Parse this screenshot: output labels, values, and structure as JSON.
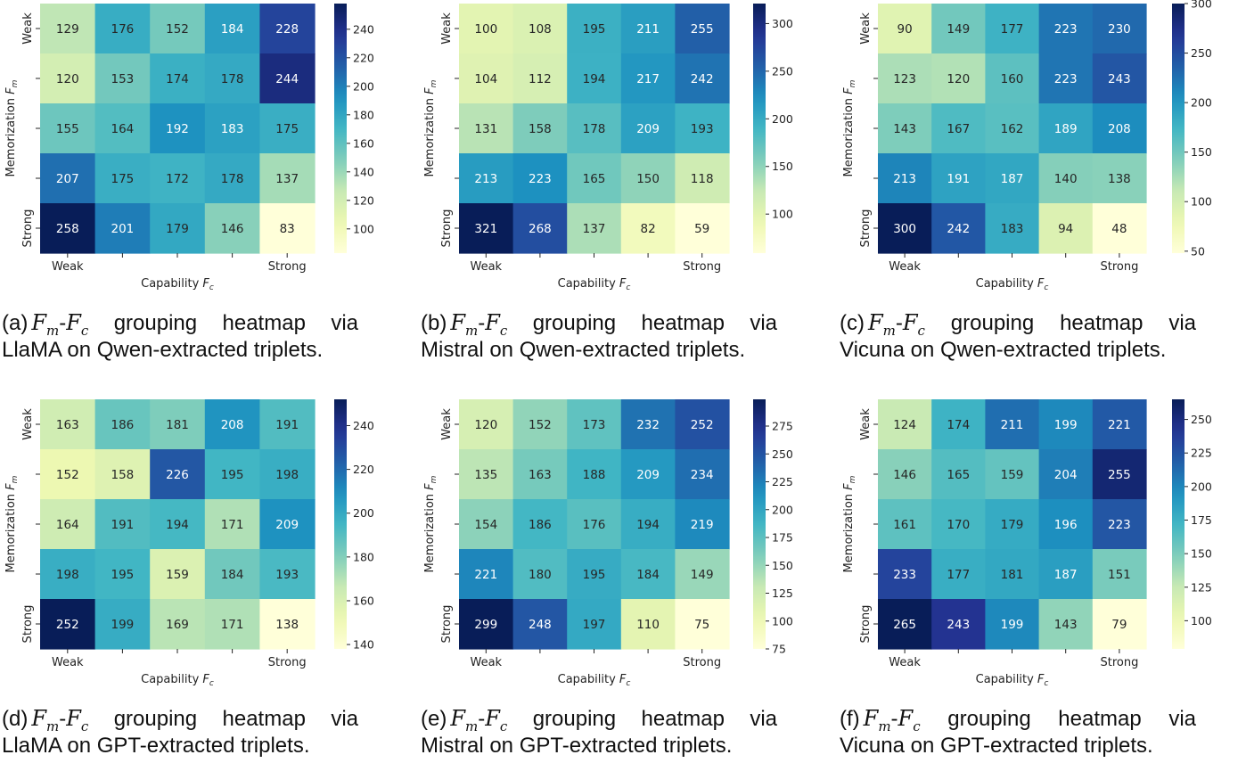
{
  "chart_data": [
    {
      "id": "a",
      "type": "heatmap",
      "caption_label": "(a)",
      "caption_text": "grouping heatmap via LlaMA on Qwen-extracted triplets.",
      "xlabel": "Capability F_c",
      "ylabel": "Memorization F_m",
      "xticks": [
        "Weak",
        "",
        "",
        "",
        "Strong"
      ],
      "yticks": [
        "Weak",
        "",
        "",
        "",
        "Strong"
      ],
      "values": [
        [
          129,
          176,
          152,
          184,
          228
        ],
        [
          120,
          153,
          174,
          178,
          244
        ],
        [
          155,
          164,
          192,
          183,
          175
        ],
        [
          207,
          175,
          172,
          178,
          137
        ],
        [
          258,
          201,
          179,
          146,
          83
        ]
      ],
      "vmin": 83,
      "vmax": 258,
      "colorbar_ticks": [
        100,
        120,
        140,
        160,
        180,
        200,
        220,
        240
      ],
      "colormap": "YlGnBu"
    },
    {
      "id": "b",
      "type": "heatmap",
      "caption_label": "(b)",
      "caption_text": "grouping heatmap via Mistral on Qwen-extracted triplets.",
      "xlabel": "Capability F_c",
      "ylabel": "Memorization F_m",
      "xticks": [
        "Weak",
        "",
        "",
        "",
        "Strong"
      ],
      "yticks": [
        "Weak",
        "",
        "",
        "",
        "Strong"
      ],
      "values": [
        [
          100,
          108,
          195,
          211,
          255
        ],
        [
          104,
          112,
          194,
          217,
          242
        ],
        [
          131,
          158,
          178,
          209,
          193
        ],
        [
          213,
          223,
          165,
          150,
          118
        ],
        [
          321,
          268,
          137,
          82,
          59
        ]
      ],
      "vmin": 59,
      "vmax": 321,
      "colorbar_ticks": [
        100,
        150,
        200,
        250,
        300
      ],
      "colormap": "YlGnBu"
    },
    {
      "id": "c",
      "type": "heatmap",
      "caption_label": "(c)",
      "caption_text": "grouping heatmap via Vicuna on Qwen-extracted triplets.",
      "xlabel": "Capability F_c",
      "ylabel": "Memorization F_m",
      "xticks": [
        "Weak",
        "",
        "",
        "",
        "Strong"
      ],
      "yticks": [
        "Weak",
        "",
        "",
        "",
        "Strong"
      ],
      "values": [
        [
          90,
          149,
          177,
          223,
          230
        ],
        [
          123,
          120,
          160,
          223,
          243
        ],
        [
          143,
          167,
          162,
          189,
          208
        ],
        [
          213,
          191,
          187,
          140,
          138
        ],
        [
          300,
          242,
          183,
          94,
          48
        ]
      ],
      "vmin": 48,
      "vmax": 300,
      "colorbar_ticks": [
        50,
        100,
        150,
        200,
        250,
        300
      ],
      "colormap": "YlGnBu"
    },
    {
      "id": "d",
      "type": "heatmap",
      "caption_label": "(d)",
      "caption_text": "grouping heatmap via LlaMA on GPT-extracted triplets.",
      "xlabel": "Capability F_c",
      "ylabel": "Memorization F_m",
      "xticks": [
        "Weak",
        "",
        "",
        "",
        "Strong"
      ],
      "yticks": [
        "Weak",
        "",
        "",
        "",
        "Strong"
      ],
      "values": [
        [
          163,
          186,
          181,
          208,
          191
        ],
        [
          152,
          158,
          226,
          195,
          198
        ],
        [
          164,
          191,
          194,
          171,
          209
        ],
        [
          198,
          195,
          159,
          184,
          193
        ],
        [
          252,
          199,
          169,
          171,
          138
        ]
      ],
      "vmin": 138,
      "vmax": 252,
      "colorbar_ticks": [
        140,
        160,
        180,
        200,
        220,
        240
      ],
      "colormap": "YlGnBu"
    },
    {
      "id": "e",
      "type": "heatmap",
      "caption_label": "(e)",
      "caption_text": "grouping heatmap via Mistral on GPT-extracted triplets.",
      "xlabel": "Capability F_c",
      "ylabel": "Memorization F_m",
      "xticks": [
        "Weak",
        "",
        "",
        "",
        "Strong"
      ],
      "yticks": [
        "Weak",
        "",
        "",
        "",
        "Strong"
      ],
      "values": [
        [
          120,
          152,
          173,
          232,
          252
        ],
        [
          135,
          163,
          188,
          209,
          234
        ],
        [
          154,
          186,
          176,
          194,
          219
        ],
        [
          221,
          180,
          195,
          184,
          149
        ],
        [
          299,
          248,
          197,
          110,
          75
        ]
      ],
      "vmin": 75,
      "vmax": 299,
      "colorbar_ticks": [
        75,
        100,
        125,
        150,
        175,
        200,
        225,
        250,
        275
      ],
      "colormap": "YlGnBu"
    },
    {
      "id": "f",
      "type": "heatmap",
      "caption_label": "(f)",
      "caption_text": "grouping heatmap via Vicuna on GPT-extracted triplets.",
      "xlabel": "Capability F_c",
      "ylabel": "Memorization F_m",
      "xticks": [
        "Weak",
        "",
        "",
        "",
        "Strong"
      ],
      "yticks": [
        "Weak",
        "",
        "",
        "",
        "Strong"
      ],
      "values": [
        [
          124,
          174,
          211,
          199,
          221
        ],
        [
          146,
          165,
          159,
          204,
          255
        ],
        [
          161,
          170,
          179,
          196,
          223
        ],
        [
          233,
          177,
          181,
          187,
          151
        ],
        [
          265,
          243,
          199,
          143,
          79
        ]
      ],
      "vmin": 79,
      "vmax": 265,
      "colorbar_ticks": [
        100,
        125,
        150,
        175,
        200,
        225,
        250
      ],
      "colormap": "YlGnBu"
    }
  ]
}
